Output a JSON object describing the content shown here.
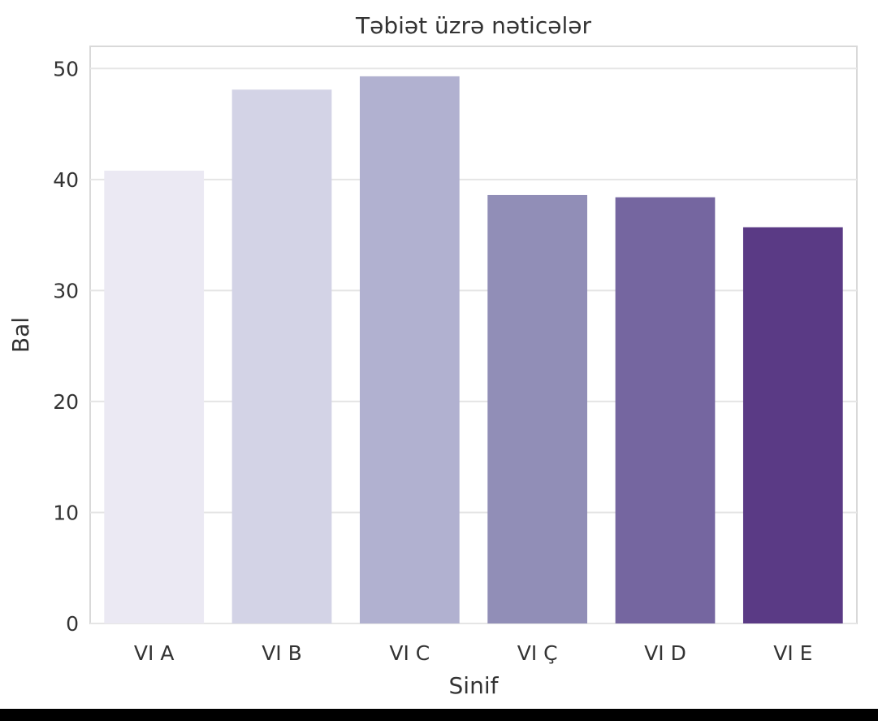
{
  "chart_data": {
    "type": "bar",
    "title": "Təbiət üzrə nəticələr",
    "xlabel": "Sinif",
    "ylabel": "Bal",
    "categories": [
      "VI A",
      "VI B",
      "VI C",
      "VI Ç",
      "VI D",
      "VI E"
    ],
    "values": [
      40.8,
      48.1,
      49.3,
      38.6,
      38.4,
      35.7
    ],
    "colors": [
      "#ebe9f3",
      "#d3d3e6",
      "#b1b1d0",
      "#918eb7",
      "#7566a0",
      "#5a3a85"
    ],
    "ylim": [
      0,
      52
    ],
    "yticks": [
      "0",
      "10",
      "20",
      "30",
      "40",
      "50"
    ],
    "grid": true,
    "grid_color": "#e5e5e5",
    "axes_edge_color": "#d9d9d9"
  }
}
